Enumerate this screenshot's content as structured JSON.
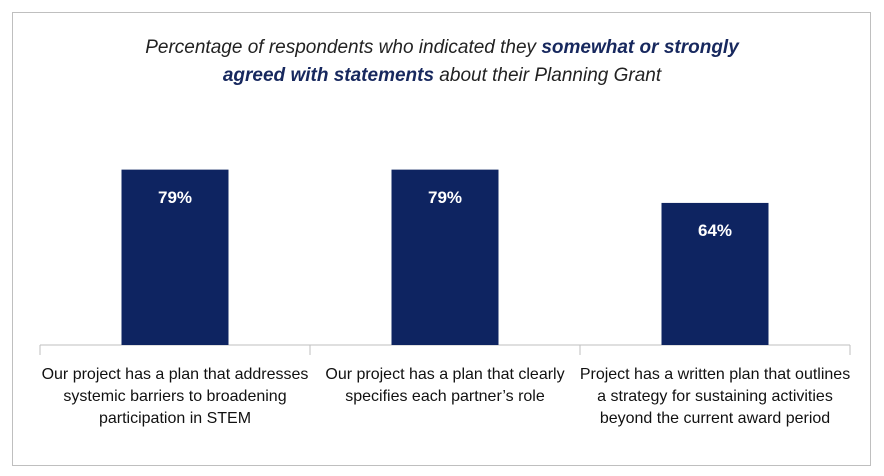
{
  "chart_data": {
    "type": "bar",
    "title": [
      "Percentage of respondents who indicated they ",
      "somewhat or strongly",
      "agreed with statements",
      " about their Planning Grant"
    ],
    "categories": [
      "Our project has a plan that addresses systemic barriers to broadening participation in STEM",
      "Our project has a plan that clearly specifies each partner’s role",
      "Project has a written plan that outlines a strategy for sustaining activities beyond the current award period"
    ],
    "values": [
      79,
      79,
      64
    ],
    "value_labels": [
      "79%",
      "79%",
      "64%"
    ],
    "color": "#0e2461"
  }
}
